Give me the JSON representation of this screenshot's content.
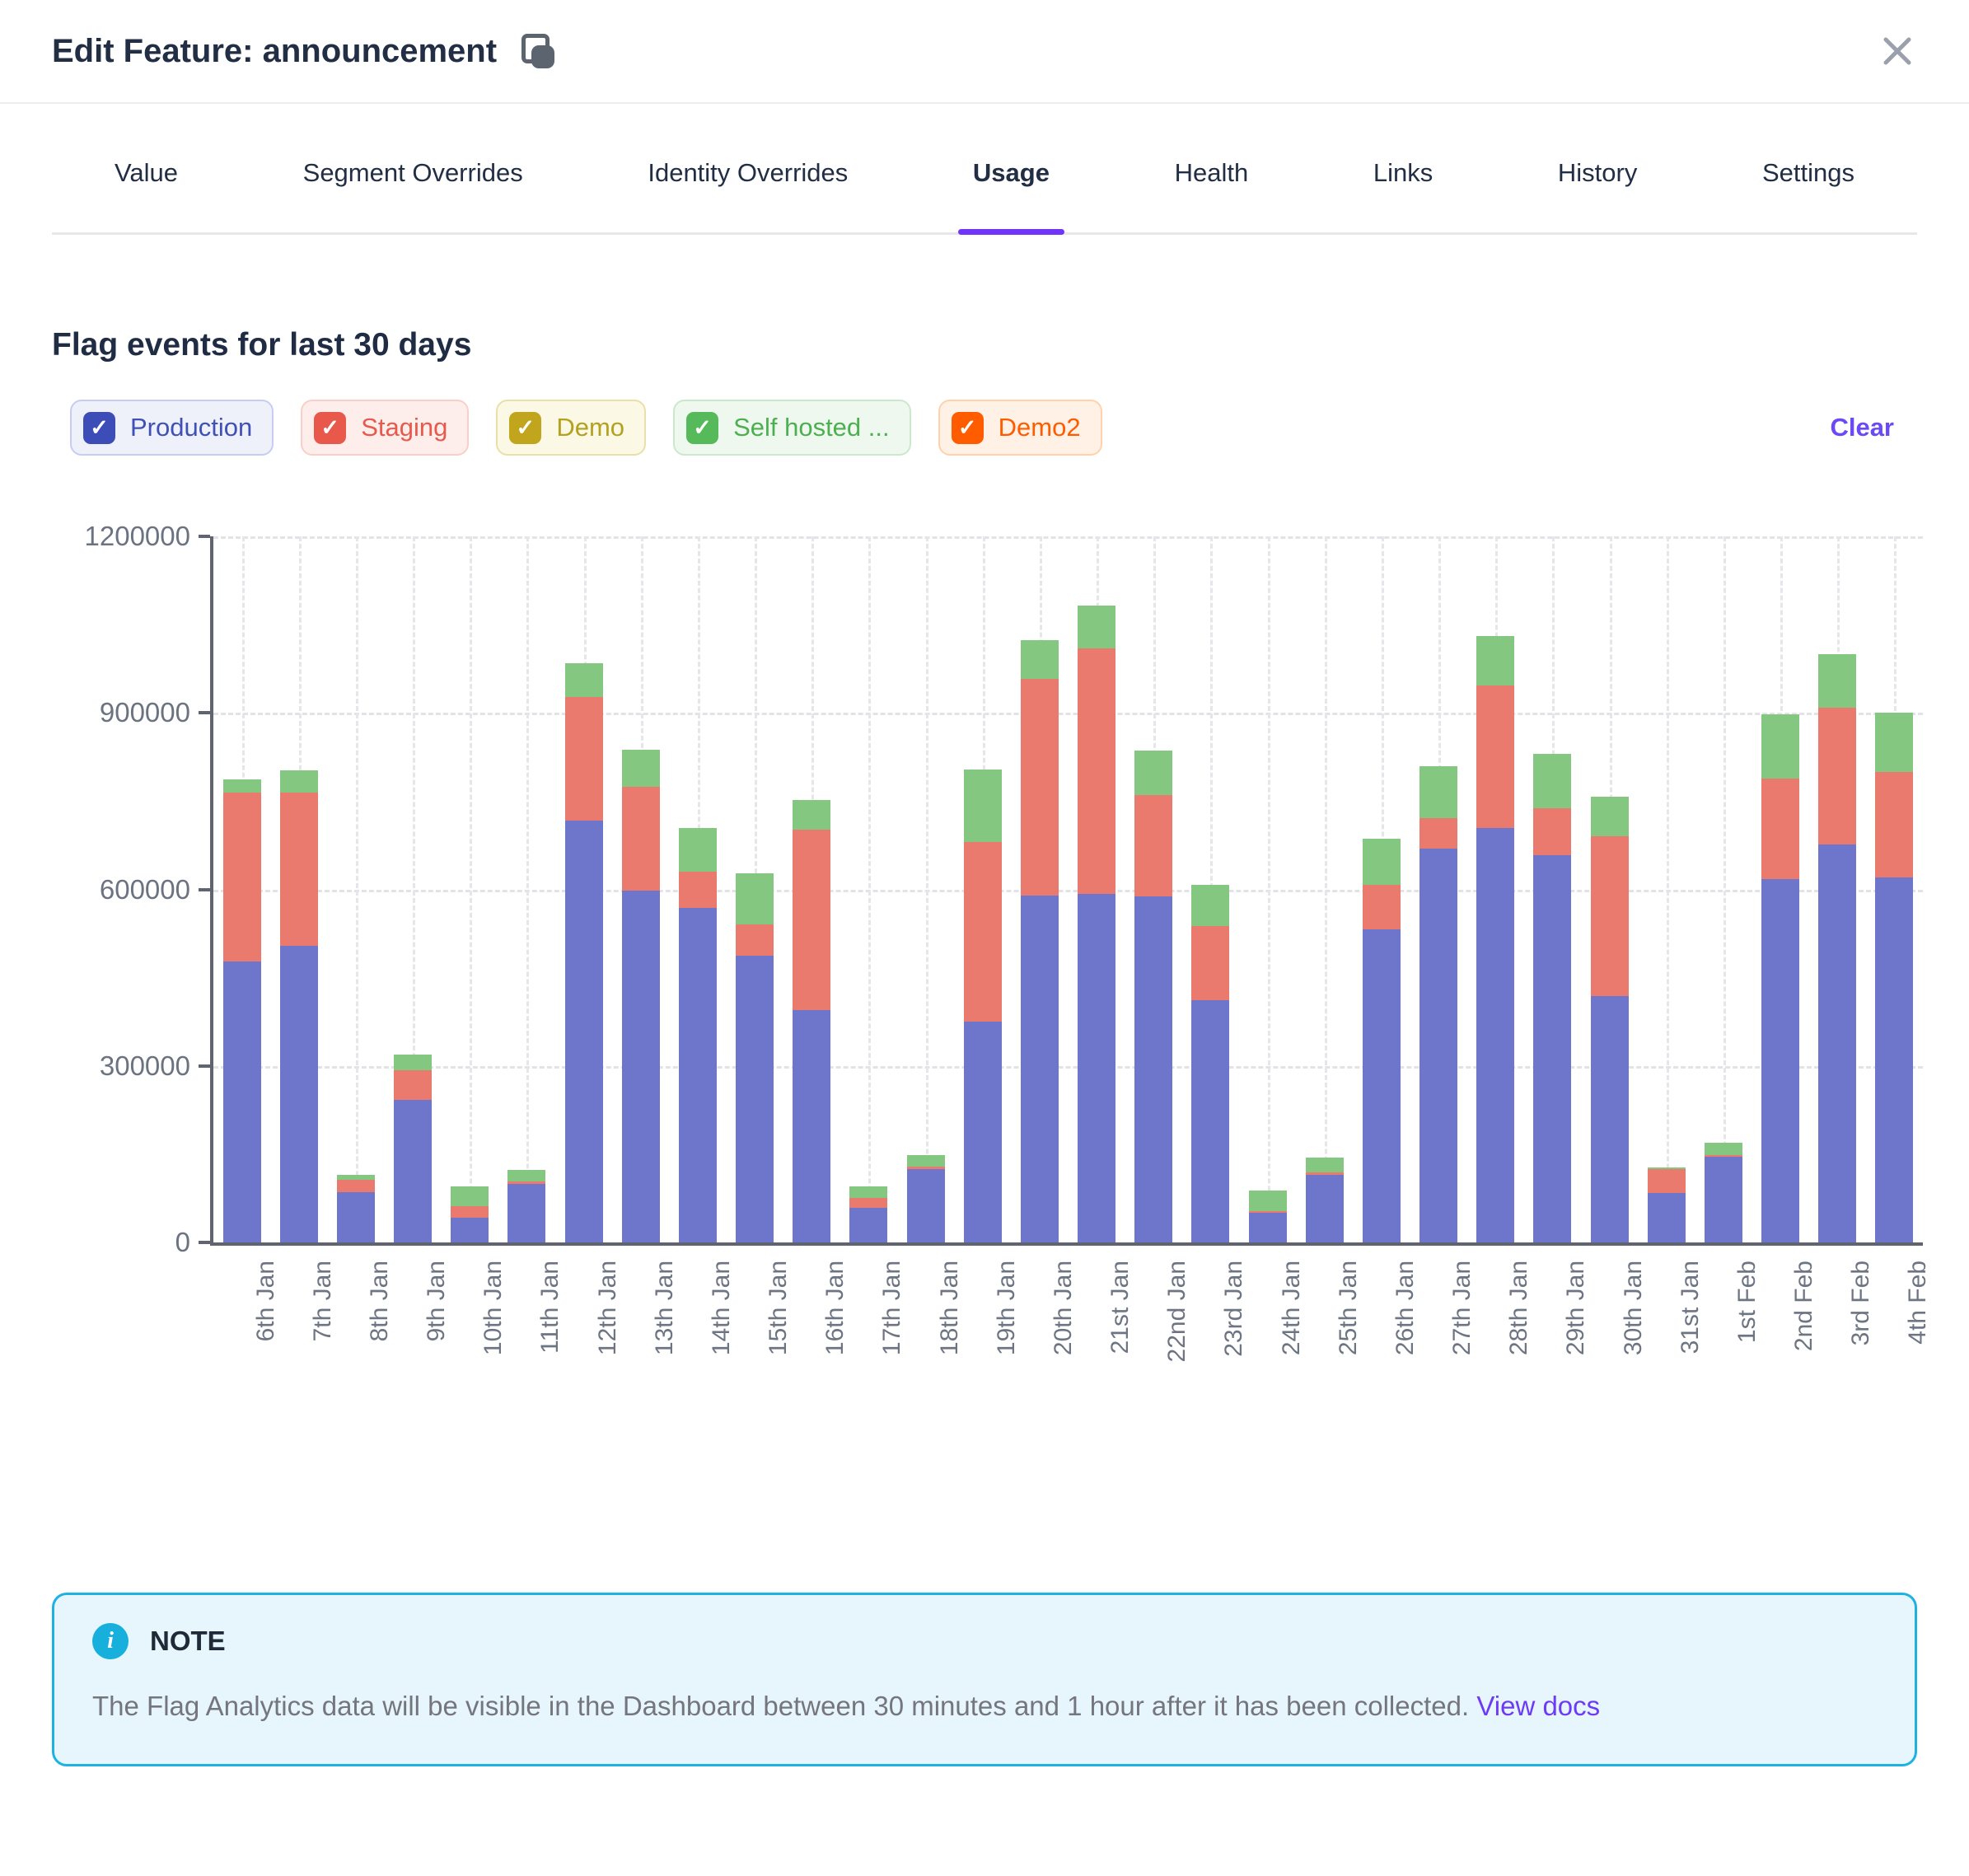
{
  "accent_color": "#7134fb",
  "modal": {
    "title": "Edit Feature: announcement"
  },
  "tabs": {
    "items": [
      "Value",
      "Segment Overrides",
      "Identity Overrides",
      "Usage",
      "Health",
      "Links",
      "History",
      "Settings"
    ],
    "active": "Usage"
  },
  "usage": {
    "heading": "Flag events for last 30 days",
    "clear_label": "Clear",
    "legend": [
      {
        "label": "Production",
        "checked": true,
        "box_color": "#3d4db8",
        "text_color": "#3f51b5",
        "bg": "#eef0fa",
        "border": "#c7cdf0"
      },
      {
        "label": "Staging",
        "checked": true,
        "box_color": "#e8594c",
        "text_color": "#e8594c",
        "bg": "#fdeeec",
        "border": "#f8cfc9"
      },
      {
        "label": "Demo",
        "checked": true,
        "box_color": "#c0a51d",
        "text_color": "#b3a21f",
        "bg": "#fbf8e6",
        "border": "#e8e0a8"
      },
      {
        "label": "Self hosted ...",
        "checked": true,
        "box_color": "#57ba5a",
        "text_color": "#4caf50",
        "bg": "#eff8ef",
        "border": "#cbe8cc"
      },
      {
        "label": "Demo2",
        "checked": true,
        "box_color": "#ff5c00",
        "text_color": "#ff5c00",
        "bg": "#fff1e6",
        "border": "#ffd2ab"
      }
    ]
  },
  "chart_data": {
    "type": "bar",
    "stacked": true,
    "title": "Flag events for last 30 days",
    "xlabel": "",
    "ylabel": "",
    "ylim": [
      0,
      1200000
    ],
    "yticks": [
      0,
      300000,
      600000,
      900000,
      1200000
    ],
    "grid": true,
    "legend_position": "top",
    "categories": [
      "6th Jan",
      "7th Jan",
      "8th Jan",
      "9th Jan",
      "10th Jan",
      "11th Jan",
      "12th Jan",
      "13th Jan",
      "14th Jan",
      "15th Jan",
      "16th Jan",
      "17th Jan",
      "18th Jan",
      "19th Jan",
      "20th Jan",
      "21st Jan",
      "22nd Jan",
      "23rd Jan",
      "24th Jan",
      "25th Jan",
      "26th Jan",
      "27th Jan",
      "28th Jan",
      "29th Jan",
      "30th Jan",
      "31st Jan",
      "1st Feb",
      "2nd Feb",
      "3rd Feb",
      "4th Feb"
    ],
    "series": [
      {
        "name": "Production",
        "color": "#6e76cb",
        "values": [
          477000,
          504000,
          85000,
          242000,
          42000,
          100000,
          717000,
          598000,
          569000,
          488000,
          395000,
          59000,
          125000,
          375000,
          590000,
          592000,
          588000,
          412000,
          50000,
          115000,
          532000,
          670000,
          705000,
          658000,
          419000,
          84000,
          146000,
          618000,
          676000,
          620000
        ]
      },
      {
        "name": "Staging",
        "color": "#ea7a6e",
        "values": [
          287000,
          260000,
          22000,
          50000,
          19000,
          4000,
          210000,
          177000,
          61000,
          53000,
          306000,
          16000,
          4000,
          305000,
          368000,
          417000,
          173000,
          126000,
          3000,
          4000,
          76000,
          51000,
          242000,
          80000,
          271000,
          40000,
          3000,
          171000,
          233000,
          180000
        ]
      },
      {
        "name": "Self hosted ...",
        "color": "#83c780",
        "values": [
          23000,
          38000,
          8000,
          27000,
          34000,
          19000,
          57000,
          62000,
          74000,
          86000,
          51000,
          20000,
          19000,
          124000,
          65000,
          74000,
          75000,
          70000,
          35000,
          25000,
          78000,
          89000,
          84000,
          93000,
          68000,
          4000,
          21000,
          108000,
          91000,
          100000
        ]
      }
    ]
  },
  "note": {
    "label": "NOTE",
    "text": "The Flag Analytics data will be visible in the Dashboard between 30 minutes and 1 hour after it has been collected.",
    "link_label": "View docs"
  }
}
